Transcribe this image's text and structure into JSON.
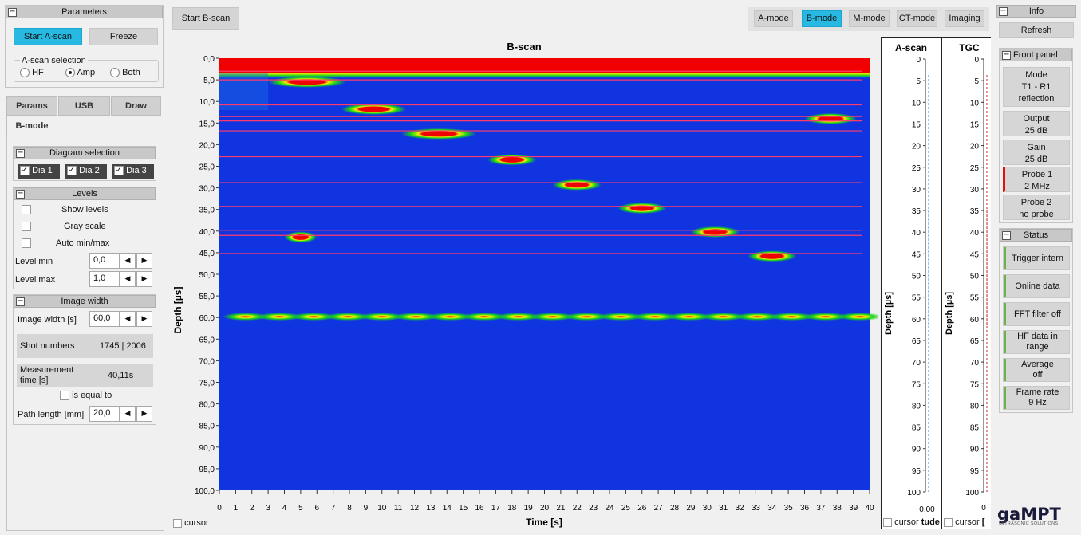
{
  "left": {
    "params_title": "Parameters",
    "start_ascan": "Start A-scan",
    "freeze": "Freeze",
    "ascan_selection_label": "A-scan selection",
    "radio_hf": "HF",
    "radio_amp": "Amp",
    "radio_both": "Both",
    "tabs": [
      "Params",
      "USB",
      "Draw",
      "B-mode"
    ],
    "diagram_selection_title": "Diagram selection",
    "dia1": "Dia 1",
    "dia2": "Dia 2",
    "dia3": "Dia 3",
    "levels_title": "Levels",
    "show_levels": "Show levels",
    "gray_scale": "Gray scale",
    "auto_minmax": "Auto min/max",
    "level_min_label": "Level min",
    "level_min_value": "0,0",
    "level_max_label": "Level max",
    "level_max_value": "1,0",
    "image_width_title": "Image width",
    "image_width_label": "Image width [s]",
    "image_width_value": "60,0",
    "shot_numbers_label": "Shot numbers",
    "shot_numbers_value": "1745 | 2006",
    "measurement_time_label": "Measurement time [s]",
    "measurement_time_value": "40,11s",
    "is_equal_to": "is equal to",
    "path_length_label": "Path length [mm]",
    "path_length_value": "20,0"
  },
  "toolbar": {
    "start_bscan": "Start B-scan",
    "modes": [
      {
        "label": "A-mode",
        "key": "A",
        "rest": "-mode",
        "active": false
      },
      {
        "label": "B-mode",
        "key": "B",
        "rest": "-mode",
        "active": true
      },
      {
        "label": "M-mode",
        "key": "M",
        "rest": "-mode",
        "active": false
      },
      {
        "label": "CT-mode",
        "key": "C",
        "rest": "T-mode",
        "active": false
      },
      {
        "label": "Imaging",
        "key": "I",
        "rest": "maging",
        "active": false
      }
    ]
  },
  "bscan": {
    "title": "B-scan",
    "ylabel": "Depth [µs]",
    "xlabel": "Time [s]",
    "cursor_label": "cursor"
  },
  "chart_data": [
    {
      "type": "heatmap",
      "title": "B-scan",
      "xlabel": "Time [s]",
      "ylabel": "Depth [µs]",
      "xlim": [
        0,
        40
      ],
      "ylim": [
        0,
        100
      ],
      "y_inverted": true,
      "x_ticks": [
        0,
        1,
        2,
        3,
        4,
        5,
        6,
        7,
        8,
        9,
        10,
        11,
        12,
        13,
        14,
        15,
        16,
        17,
        18,
        19,
        20,
        21,
        22,
        23,
        24,
        25,
        26,
        27,
        28,
        29,
        30,
        31,
        32,
        33,
        34,
        35,
        36,
        37,
        38,
        39,
        40
      ],
      "y_ticks": [
        "0,0",
        "5,0",
        "10,0",
        "15,0",
        "20,0",
        "25,0",
        "30,0",
        "35,0",
        "40,0",
        "45,0",
        "50,0",
        "55,0",
        "60,0",
        "65,0",
        "70,0",
        "75,0",
        "80,0",
        "85,0",
        "90,0",
        "95,0",
        "100,0"
      ],
      "colormap": {
        "background": "#1034e0",
        "low": "#18d418",
        "mid": "#f0f000",
        "high": "#f00000"
      },
      "surface_band_depth": [
        0,
        3.5
      ],
      "echoes": [
        {
          "x_from": 3.0,
          "x_to": 7.8,
          "depth": 5.5
        },
        {
          "x_from": 7.5,
          "x_to": 11.5,
          "depth": 11.8
        },
        {
          "x_from": 11.2,
          "x_to": 15.8,
          "depth": 17.5
        },
        {
          "x_from": 16.5,
          "x_to": 19.5,
          "depth": 23.5
        },
        {
          "x_from": 20.5,
          "x_to": 23.5,
          "depth": 29.3
        },
        {
          "x_from": 24.5,
          "x_to": 27.5,
          "depth": 34.7
        },
        {
          "x_from": 29.0,
          "x_to": 32.0,
          "depth": 40.2
        },
        {
          "x_from": 4.0,
          "x_to": 6.0,
          "depth": 41.4
        },
        {
          "x_from": 32.5,
          "x_to": 35.5,
          "depth": 45.8
        },
        {
          "x_from": 36.0,
          "x_to": 39.2,
          "depth": 14.0
        }
      ],
      "backwall_depth": 59.8,
      "marker_lines_depth": [
        3.0,
        5.0,
        10.8,
        13.5,
        14.5,
        16.8,
        22.8,
        28.8,
        34.3,
        39.8,
        41.0,
        45.2
      ]
    },
    {
      "type": "line",
      "title": "A-scan",
      "ylabel": "Depth [µs]",
      "ylim": [
        0,
        100
      ],
      "y_ticks": [
        0,
        5,
        10,
        15,
        20,
        25,
        30,
        35,
        40,
        45,
        50,
        55,
        60,
        65,
        70,
        75,
        80,
        85,
        90,
        95,
        100
      ],
      "x_tick": "0,00",
      "x_label_partial": "tude"
    },
    {
      "type": "line",
      "title": "TGC",
      "ylabel": "Depth [µs]",
      "ylim": [
        0,
        100
      ],
      "y_ticks": [
        0,
        5,
        10,
        15,
        20,
        25,
        30,
        35,
        40,
        45,
        50,
        55,
        60,
        65,
        70,
        75,
        80,
        85,
        90,
        95,
        100
      ],
      "x_tick": "0",
      "x_label_partial": "["
    }
  ],
  "ascan": {
    "title": "A-scan",
    "ylabel": "Depth [µs]",
    "x_tick": "0,00",
    "cursor_label": "cursor",
    "x_label_partial": "tude"
  },
  "tgc": {
    "title": "TGC",
    "ylabel": "Depth [µs]",
    "x_tick": "0",
    "cursor_label": "cursor",
    "x_label_partial": "["
  },
  "info": {
    "title": "Info",
    "refresh": "Refresh",
    "front_panel_title": "Front panel",
    "front_panel": [
      {
        "lines": [
          "Mode",
          "T1 - R1",
          "reflection"
        ],
        "accent": ""
      },
      {
        "lines": [
          "Output",
          "25 dB"
        ],
        "accent": ""
      },
      {
        "lines": [
          "Gain",
          "25 dB"
        ],
        "accent": ""
      },
      {
        "lines": [
          "Probe 1",
          "2 MHz"
        ],
        "accent": "#e01010"
      },
      {
        "lines": [
          "Probe 2",
          "no probe"
        ],
        "accent": ""
      }
    ],
    "status_title": "Status",
    "status": [
      {
        "lines": [
          "Trigger intern"
        ]
      },
      {
        "lines": [
          "Online data"
        ]
      },
      {
        "lines": [
          "FFT filter off"
        ]
      },
      {
        "lines": [
          "HF data in",
          "range"
        ]
      },
      {
        "lines": [
          "Average",
          "off"
        ]
      },
      {
        "lines": [
          "Frame rate",
          "9 Hz"
        ]
      }
    ],
    "status_color": "#6ab04c"
  },
  "logo": {
    "name": "gaMPT",
    "tagline": "ULTRASONIC SOLUTIONS"
  }
}
